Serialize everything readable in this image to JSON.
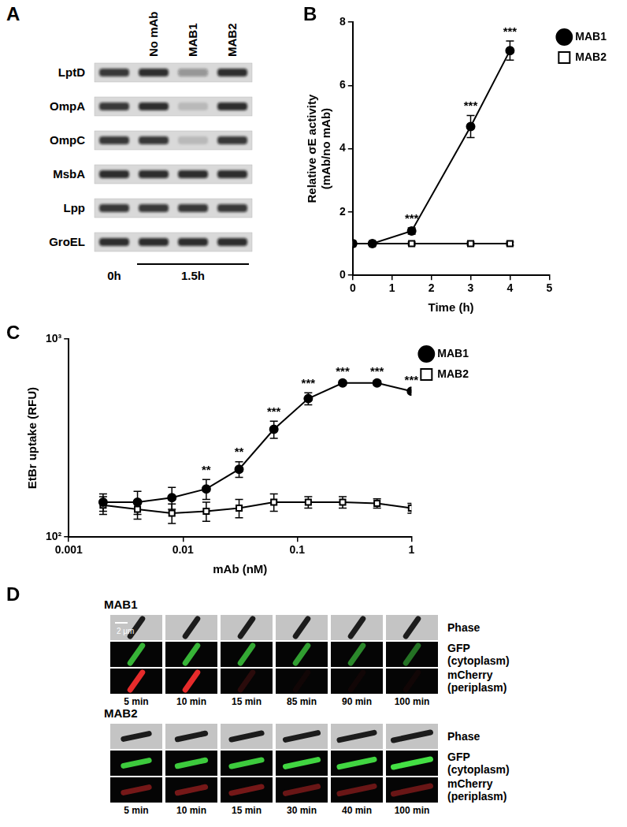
{
  "panel_labels": [
    "A",
    "B",
    "C",
    "D"
  ],
  "blot": {
    "lanes": [
      null,
      "No mAb",
      "MAB1",
      "MAB2"
    ],
    "rows": [
      {
        "label": "LptD",
        "bands": [
          0.8,
          0.85,
          0.35,
          0.85
        ]
      },
      {
        "label": "OmpA",
        "bands": [
          0.8,
          0.85,
          0.15,
          0.85
        ]
      },
      {
        "label": "OmpC",
        "bands": [
          0.8,
          0.8,
          0.15,
          0.8
        ]
      },
      {
        "label": "MsbA",
        "bands": [
          0.85,
          0.85,
          0.85,
          0.85
        ]
      },
      {
        "label": "Lpp",
        "bands": [
          0.8,
          0.8,
          0.8,
          0.8
        ]
      },
      {
        "label": "GroEL",
        "bands": [
          0.85,
          0.85,
          0.85,
          0.85
        ]
      }
    ],
    "timepoints": [
      {
        "label": "0h",
        "lane_count": 1
      },
      {
        "label": "1.5h",
        "lane_count": 3
      }
    ]
  },
  "chart_data": [
    {
      "type": "line",
      "xlabel": "Time (h)",
      "ylabel": [
        "Relative σE activity",
        "(mAb/no mAb)"
      ],
      "x": [
        0,
        0.5,
        1.5,
        3,
        4
      ],
      "xlim": [
        0,
        5
      ],
      "xticks": [
        0,
        1,
        2,
        3,
        4,
        5
      ],
      "ylim": [
        0,
        8
      ],
      "yticks": [
        0,
        2,
        4,
        6,
        8
      ],
      "grid": false,
      "legend": "right",
      "series": [
        {
          "name": "MAB1",
          "color": "#000000",
          "marker": "circle",
          "values": [
            1,
            1,
            1.4,
            4.7,
            7.1
          ],
          "errors": [
            0.05,
            0.05,
            0.1,
            0.35,
            0.3
          ]
        },
        {
          "name": "MAB2",
          "color": "#000000",
          "marker": "open_square",
          "values": [
            1,
            1,
            1,
            1,
            1
          ],
          "errors": [
            0.05,
            0.05,
            0.05,
            0.05,
            0.05
          ]
        }
      ],
      "annotations": [
        {
          "x": 1.5,
          "text": "***"
        },
        {
          "x": 3,
          "text": "***"
        },
        {
          "x": 4,
          "text": "***"
        }
      ]
    },
    {
      "type": "line",
      "xlabel": "mAb (nM)",
      "ylabel": [
        "EtBr uptake (RFU)"
      ],
      "log": true,
      "x": [
        0.002,
        0.004,
        0.008,
        0.016,
        0.031,
        0.0625,
        0.125,
        0.25,
        0.5,
        1
      ],
      "xlim": [
        0.001,
        1
      ],
      "xticks": [
        0.001,
        0.01,
        0.1,
        1
      ],
      "ylim": [
        100,
        1000
      ],
      "yticks": [
        {
          "value": 100,
          "label": "10²"
        },
        {
          "value": 1000,
          "label": "10³"
        }
      ],
      "grid": false,
      "legend": "right",
      "series": [
        {
          "name": "MAB1",
          "color": "#000000",
          "marker": "circle",
          "values": [
            150,
            150,
            158,
            175,
            220,
            350,
            500,
            600,
            600,
            545
          ],
          "errors": [
            15,
            20,
            20,
            20,
            20,
            35,
            35,
            15,
            15,
            10
          ]
        },
        {
          "name": "MAB2",
          "color": "#000000",
          "marker": "open_square",
          "values": [
            145,
            138,
            132,
            135,
            140,
            150,
            150,
            150,
            148,
            140
          ],
          "errors": [
            15,
            15,
            15,
            15,
            15,
            15,
            10,
            10,
            8,
            8
          ]
        }
      ],
      "annotations": [
        {
          "x": 0.016,
          "text": "**"
        },
        {
          "x": 0.031,
          "text": "**"
        },
        {
          "x": 0.0625,
          "text": "***"
        },
        {
          "x": 0.125,
          "text": "***"
        },
        {
          "x": 0.25,
          "text": "***"
        },
        {
          "x": 0.5,
          "text": "***"
        },
        {
          "x": 1,
          "text": "***"
        }
      ]
    }
  ],
  "microscopy": [
    {
      "title": "MAB1",
      "scale_bar": "2 μm",
      "channels": [
        [
          "Phase"
        ],
        [
          "GFP",
          "(cytoplasm)"
        ],
        [
          "mCherry",
          "(periplasm)"
        ]
      ],
      "times": [
        "5 min",
        "10 min",
        "15 min",
        "85 min",
        "90 min",
        "100 min"
      ],
      "gfp_brightness": [
        0.8,
        0.8,
        0.75,
        0.7,
        0.6,
        0.5
      ],
      "mcherry_brightness": [
        0.9,
        0.9,
        0.15,
        0.05,
        0.05,
        0.05
      ]
    },
    {
      "title": "MAB2",
      "channels": [
        [
          "Phase"
        ],
        [
          "GFP",
          "(cytoplasm)"
        ],
        [
          "mCherry",
          "(periplasm)"
        ]
      ],
      "times": [
        "5 min",
        "10 min",
        "15 min",
        "30 min",
        "40 min",
        "100 min"
      ],
      "gfp_brightness": [
        0.9,
        0.9,
        0.9,
        0.95,
        0.95,
        1
      ],
      "mcherry_brightness": [
        0.45,
        0.45,
        0.45,
        0.4,
        0.4,
        0.4
      ]
    }
  ]
}
